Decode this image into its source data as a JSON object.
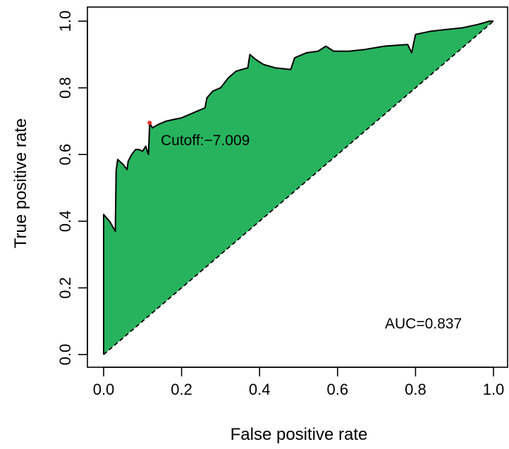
{
  "chart_data": {
    "type": "area",
    "title": "",
    "xlabel": "False positive rate",
    "ylabel": "True positive rate",
    "xlim": [
      0,
      1
    ],
    "ylim": [
      0,
      1
    ],
    "xticks": [
      "0.0",
      "0.2",
      "0.4",
      "0.6",
      "0.8",
      "1.0"
    ],
    "yticks": [
      "0.0",
      "0.2",
      "0.4",
      "0.6",
      "0.8",
      "1.0"
    ],
    "grid": false,
    "legend": "none",
    "fill_color": "#27B35E",
    "line_color": "#000000",
    "cutoff_point_color": "#E8302B",
    "series": [
      {
        "values_xy": [
          [
            0.0,
            0.0
          ],
          [
            0.0,
            0.42
          ],
          [
            0.015,
            0.4
          ],
          [
            0.03,
            0.37
          ],
          [
            0.032,
            0.55
          ],
          [
            0.036,
            0.585
          ],
          [
            0.05,
            0.57
          ],
          [
            0.06,
            0.555
          ],
          [
            0.063,
            0.58
          ],
          [
            0.072,
            0.6
          ],
          [
            0.082,
            0.615
          ],
          [
            0.09,
            0.615
          ],
          [
            0.1,
            0.61
          ],
          [
            0.108,
            0.625
          ],
          [
            0.112,
            0.61
          ],
          [
            0.115,
            0.6
          ],
          [
            0.118,
            0.695
          ],
          [
            0.125,
            0.68
          ],
          [
            0.14,
            0.69
          ],
          [
            0.16,
            0.7
          ],
          [
            0.18,
            0.705
          ],
          [
            0.2,
            0.71
          ],
          [
            0.22,
            0.72
          ],
          [
            0.24,
            0.73
          ],
          [
            0.26,
            0.74
          ],
          [
            0.265,
            0.77
          ],
          [
            0.28,
            0.79
          ],
          [
            0.3,
            0.8
          ],
          [
            0.32,
            0.83
          ],
          [
            0.34,
            0.85
          ],
          [
            0.37,
            0.86
          ],
          [
            0.375,
            0.9
          ],
          [
            0.39,
            0.885
          ],
          [
            0.41,
            0.87
          ],
          [
            0.44,
            0.86
          ],
          [
            0.48,
            0.855
          ],
          [
            0.49,
            0.89
          ],
          [
            0.52,
            0.905
          ],
          [
            0.55,
            0.91
          ],
          [
            0.57,
            0.925
          ],
          [
            0.59,
            0.91
          ],
          [
            0.63,
            0.91
          ],
          [
            0.67,
            0.915
          ],
          [
            0.72,
            0.925
          ],
          [
            0.78,
            0.93
          ],
          [
            0.79,
            0.905
          ],
          [
            0.8,
            0.96
          ],
          [
            0.84,
            0.97
          ],
          [
            0.88,
            0.975
          ],
          [
            0.92,
            0.98
          ],
          [
            0.96,
            0.99
          ],
          [
            0.99,
            1.0
          ],
          [
            1.0,
            1.0
          ]
        ]
      }
    ],
    "diagonal": [
      [
        0,
        0
      ],
      [
        1,
        1
      ]
    ],
    "cutoff_point": {
      "x": 0.118,
      "y": 0.695,
      "label": "Cutoff:−7.009"
    },
    "auc_label": "AUC=0.837"
  }
}
